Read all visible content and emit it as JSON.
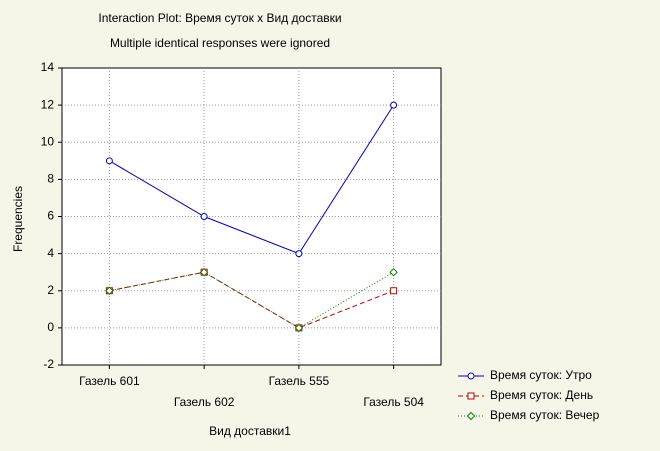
{
  "chart_data": {
    "type": "line",
    "title": "Interaction Plot: Время суток x Вид доставки",
    "subtitle": "Multiple identical responses were ignored",
    "x_label": "Вид доставки1",
    "y_label": "Frequencies",
    "categories": [
      "Газель 601",
      "Газель 602",
      "Газель 555",
      "Газель 504"
    ],
    "series": [
      {
        "name": "Время суток: Утро",
        "color": "#0000c0",
        "marker": "circle",
        "dash": "none",
        "values": [
          9,
          6,
          4,
          12
        ]
      },
      {
        "name": "Время суток: День",
        "color": "#c00000",
        "marker": "square",
        "dash": "5,3",
        "values": [
          2,
          3,
          0,
          2
        ]
      },
      {
        "name": "Время суток: Вечер",
        "color": "#008000",
        "marker": "diamond",
        "dash": "1,2",
        "values": [
          2,
          3,
          0,
          3
        ]
      }
    ],
    "ylim": [
      -2,
      14
    ],
    "yticks": [
      -2,
      0,
      2,
      4,
      6,
      8,
      10,
      12,
      14
    ],
    "grid": true,
    "legend": "bottom-right"
  }
}
